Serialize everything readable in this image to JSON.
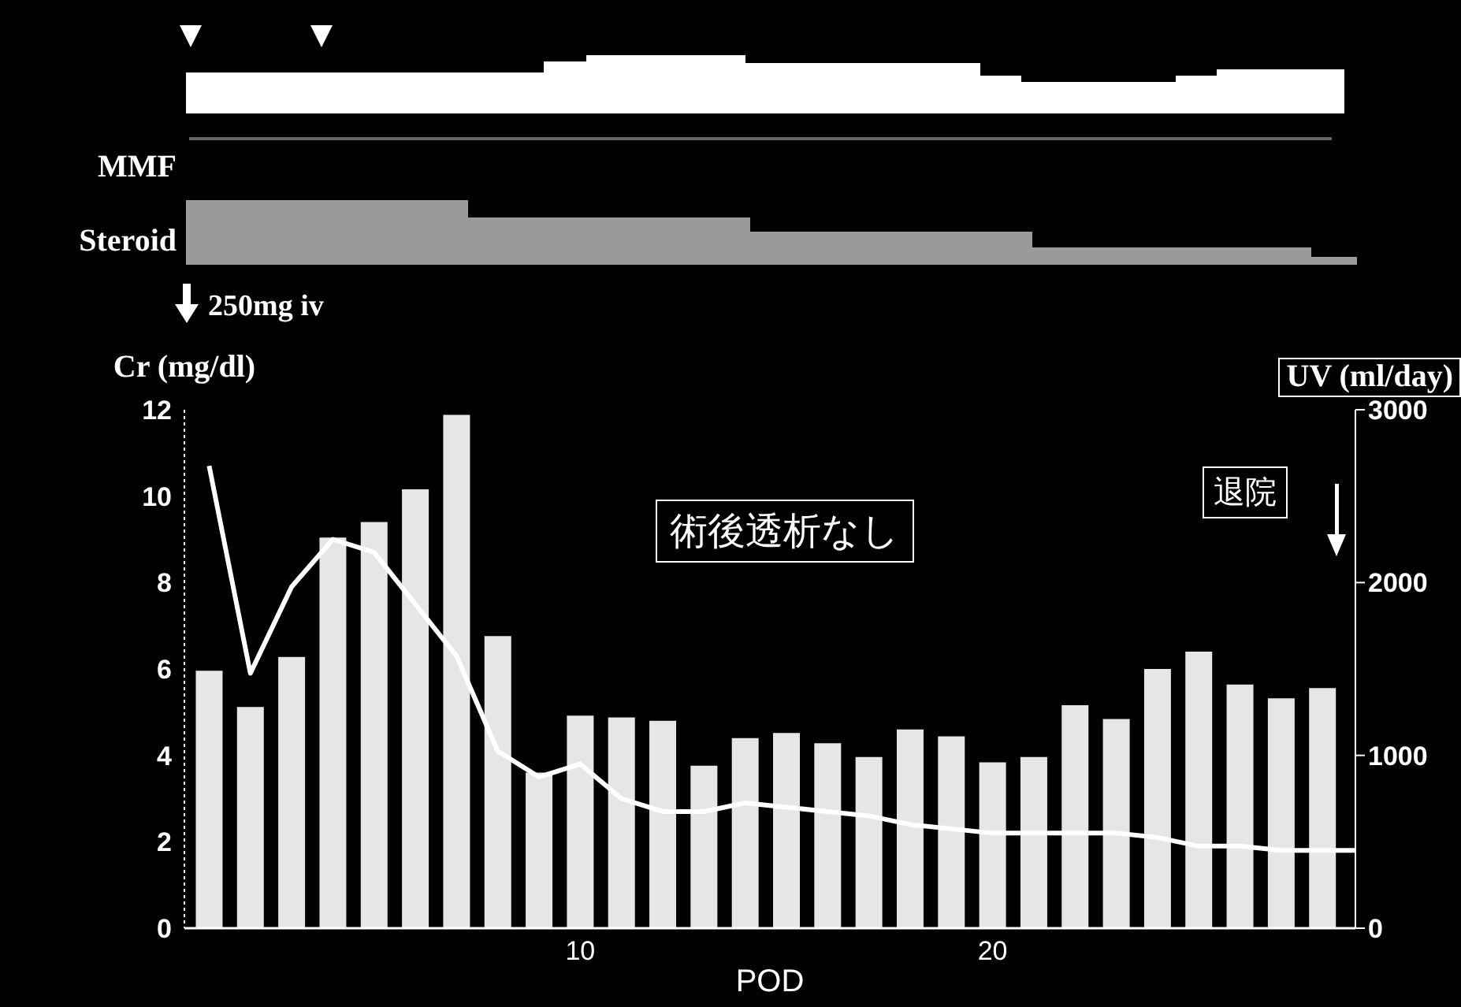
{
  "chart_data": {
    "type": "bar",
    "xlabel": "POD",
    "ylabel": "Cr (mg/dl)",
    "y2label": "UV (ml/day)",
    "annotations": [
      "MMF",
      "Steroid",
      "250mg iv",
      "術後透析なし",
      "退院"
    ],
    "x": [
      1,
      2,
      3,
      4,
      5,
      6,
      7,
      8,
      9,
      10,
      11,
      12,
      13,
      14,
      15,
      16,
      17,
      18,
      19,
      20,
      21,
      22,
      23,
      24,
      25,
      26,
      27,
      28
    ],
    "xlim": [
      0.4,
      28.8
    ],
    "xticks": [
      10,
      20
    ],
    "ylim": [
      0,
      12
    ],
    "yticks": [
      0,
      2,
      4,
      6,
      8,
      10,
      12
    ],
    "y2lim": [
      0,
      3000
    ],
    "y2ticks": [
      0,
      1000,
      2000,
      3000
    ],
    "series": [
      {
        "axis": "y2",
        "color": "#e6e6e6",
        "values": [
          1490,
          1280,
          1570,
          2260,
          2350,
          2540,
          2970,
          1690,
          900,
          1230,
          1220,
          1200,
          940,
          1100,
          1130,
          1070,
          990,
          1150,
          1110,
          960,
          990,
          1290,
          1210,
          1500,
          1600,
          1410,
          1330,
          1390
        ]
      },
      {
        "type": "line",
        "axis": "y",
        "color": "#ffffff",
        "marker": "none",
        "line_style": "solid",
        "x": [
          1,
          2,
          3,
          4,
          5,
          6,
          7,
          8,
          9,
          10,
          11,
          12,
          13,
          14,
          15,
          16,
          17,
          18,
          19,
          20,
          21,
          22,
          23,
          24,
          25,
          26,
          27,
          28,
          28.8
        ],
        "values": [
          10.7,
          5.9,
          7.9,
          9.0,
          8.7,
          7.5,
          6.3,
          4.1,
          3.5,
          3.8,
          3.0,
          2.7,
          2.7,
          2.9,
          2.8,
          2.7,
          2.6,
          2.4,
          2.3,
          2.2,
          2.2,
          2.2,
          2.2,
          2.1,
          1.9,
          1.9,
          1.8,
          1.8,
          1.8
        ]
      }
    ]
  }
}
